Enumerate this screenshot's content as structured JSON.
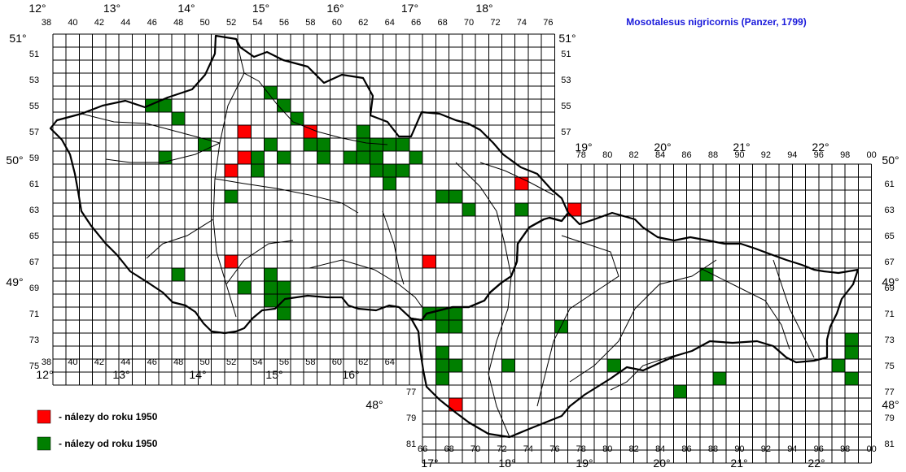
{
  "title": "Mosotalesus nigricornis (Panzer, 1799)",
  "legend": [
    {
      "color": "#ff0000",
      "label": "- nálezy do roku 1950"
    },
    {
      "color": "#007f00",
      "label": "- nálezy od roku 1950"
    }
  ],
  "colors": {
    "old": "#ff0000",
    "new": "#007f00",
    "grid": "#000000",
    "border": "#000000"
  },
  "top_degree_labels": [
    "12°",
    "13°",
    "14°",
    "15°",
    "16°",
    "17°",
    "18°"
  ],
  "top_right_degree_labels": [
    "19°",
    "20°",
    "21°",
    "22°"
  ],
  "bottom_degree_labels_left": [
    "12°",
    "13°",
    "14°",
    "15°",
    "16°"
  ],
  "bottom_degree_labels_right": [
    "17°",
    "18°",
    "19°",
    "20°",
    "21°",
    "22°"
  ],
  "top_column_numbers": [
    "38",
    "40",
    "42",
    "44",
    "46",
    "48",
    "50",
    "52",
    "54",
    "56",
    "58",
    "60",
    "62",
    "64",
    "66",
    "68",
    "70",
    "72",
    "74",
    "76"
  ],
  "top_right_column_numbers": [
    "78",
    "80",
    "82",
    "84",
    "86",
    "88",
    "90",
    "92",
    "94",
    "96",
    "98",
    "00"
  ],
  "bottom_left_column_numbers": [
    "38",
    "40",
    "42",
    "44",
    "46",
    "48",
    "50",
    "52",
    "54",
    "56",
    "58",
    "60",
    "62",
    "64"
  ],
  "bottom_right_column_numbers": [
    "66",
    "68",
    "70",
    "72",
    "74",
    "76",
    "78",
    "80",
    "82",
    "84",
    "86",
    "88",
    "90",
    "92",
    "94",
    "96",
    "98",
    "00"
  ],
  "left_row_numbers": [
    "51",
    "53",
    "55",
    "57",
    "59",
    "61",
    "63",
    "65",
    "67",
    "69",
    "71",
    "73",
    "75"
  ],
  "right_top_row_numbers": [
    "51",
    "53",
    "55",
    "57"
  ],
  "right_bottom_row_numbers": [
    "61",
    "63",
    "65",
    "67",
    "69",
    "71",
    "73",
    "75",
    "77",
    "79",
    "81"
  ],
  "lat_labels": {
    "left": [
      "51°",
      "50°",
      "49°"
    ],
    "right": [
      "51°",
      "50°",
      "49°",
      "48°"
    ],
    "bottom_left": "48°"
  },
  "records_old": [
    [
      52,
      57
    ],
    [
      51,
      60
    ],
    [
      52,
      59
    ],
    [
      57,
      57
    ],
    [
      51,
      67
    ],
    [
      66,
      67
    ],
    [
      73,
      61
    ],
    [
      77,
      63
    ],
    [
      68,
      78
    ]
  ],
  "records_new": [
    [
      45,
      55
    ],
    [
      46,
      55
    ],
    [
      47,
      56
    ],
    [
      49,
      58
    ],
    [
      54,
      54
    ],
    [
      55,
      55
    ],
    [
      56,
      56
    ],
    [
      53,
      59
    ],
    [
      54,
      58
    ],
    [
      55,
      59
    ],
    [
      53,
      60
    ],
    [
      57,
      58
    ],
    [
      58,
      58
    ],
    [
      58,
      59
    ],
    [
      60,
      59
    ],
    [
      61,
      57
    ],
    [
      61,
      58
    ],
    [
      61,
      59
    ],
    [
      62,
      58
    ],
    [
      62,
      59
    ],
    [
      63,
      58
    ],
    [
      64,
      58
    ],
    [
      62,
      60
    ],
    [
      63,
      60
    ],
    [
      63,
      61
    ],
    [
      64,
      60
    ],
    [
      65,
      59
    ],
    [
      46,
      59
    ],
    [
      51,
      62
    ],
    [
      47,
      68
    ],
    [
      52,
      69
    ],
    [
      54,
      68
    ],
    [
      54,
      69
    ],
    [
      55,
      69
    ],
    [
      54,
      70
    ],
    [
      55,
      70
    ],
    [
      55,
      71
    ],
    [
      66,
      71
    ],
    [
      67,
      71
    ],
    [
      68,
      71
    ],
    [
      67,
      72
    ],
    [
      68,
      72
    ],
    [
      67,
      74
    ],
    [
      67,
      75
    ],
    [
      68,
      75
    ],
    [
      67,
      76
    ],
    [
      67,
      62
    ],
    [
      68,
      62
    ],
    [
      69,
      63
    ],
    [
      73,
      63
    ],
    [
      76,
      72
    ],
    [
      72,
      75
    ],
    [
      80,
      75
    ],
    [
      87,
      68
    ],
    [
      88,
      76
    ],
    [
      85,
      77
    ],
    [
      98,
      73
    ],
    [
      98,
      74
    ],
    [
      97,
      75
    ],
    [
      98,
      76
    ]
  ]
}
